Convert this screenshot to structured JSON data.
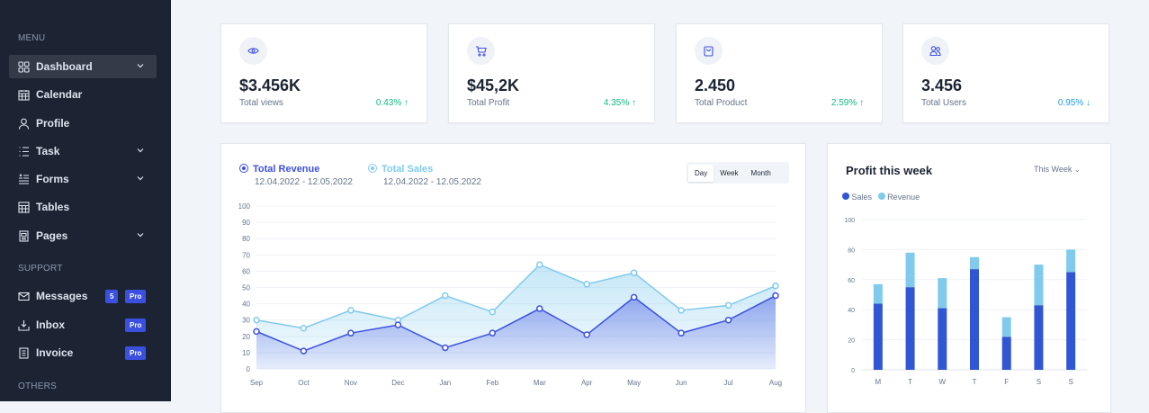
{
  "sidebar": {
    "sections": {
      "menu": "MENU",
      "support": "SUPPORT",
      "others": "OTHERS"
    },
    "items": [
      {
        "label": "Dashboard",
        "icon": "grid-icon",
        "chevron": true,
        "active": true
      },
      {
        "label": "Calendar",
        "icon": "calendar-icon"
      },
      {
        "label": "Profile",
        "icon": "user-icon"
      },
      {
        "label": "Task",
        "icon": "list-icon",
        "chevron": true
      },
      {
        "label": "Forms",
        "icon": "form-icon",
        "chevron": true
      },
      {
        "label": "Tables",
        "icon": "table-icon"
      },
      {
        "label": "Pages",
        "icon": "page-icon",
        "chevron": true
      }
    ],
    "support_items": [
      {
        "label": "Messages",
        "icon": "mail-icon",
        "count": "5",
        "pro": "Pro"
      },
      {
        "label": "Inbox",
        "icon": "inbox-icon",
        "pro": "Pro"
      },
      {
        "label": "Invoice",
        "icon": "invoice-icon",
        "pro": "Pro"
      }
    ]
  },
  "stats": [
    {
      "value": "$3.456K",
      "label": "Total views",
      "change": "0.43% ↑",
      "trend": "up",
      "icon": "eye-icon"
    },
    {
      "value": "$45,2K",
      "label": "Total Profit",
      "change": "4.35% ↑",
      "trend": "up",
      "icon": "cart-icon"
    },
    {
      "value": "2.450",
      "label": "Total Product",
      "change": "2.59% ↑",
      "trend": "up",
      "icon": "bag-icon"
    },
    {
      "value": "3.456",
      "label": "Total Users",
      "change": "0.95% ↓",
      "trend": "down",
      "icon": "users-icon"
    }
  ],
  "colors": {
    "up": "#10b981",
    "down": "#259ae6",
    "primary": "#3c50e0",
    "secondary": "#80caee",
    "bar_sales": "#3056d3"
  },
  "chart_data": [
    {
      "type": "area",
      "legend": [
        {
          "name": "Total Revenue",
          "date": "12.04.2022 - 12.05.2022"
        },
        {
          "name": "Total Sales",
          "date": "12.04.2022 - 12.05.2022"
        }
      ],
      "periods": [
        "Day",
        "Week",
        "Month"
      ],
      "selected_period": "Day",
      "categories": [
        "Sep",
        "Oct",
        "Nov",
        "Dec",
        "Jan",
        "Feb",
        "Mar",
        "Apr",
        "May",
        "Jun",
        "Jul",
        "Aug"
      ],
      "ylim": [
        0,
        100
      ],
      "yticks": [
        0,
        10,
        20,
        30,
        40,
        50,
        60,
        70,
        80,
        90,
        100
      ],
      "grid": true,
      "series": [
        {
          "name": "Total Revenue",
          "values": [
            23,
            11,
            22,
            27,
            13,
            22,
            37,
            21,
            44,
            22,
            30,
            45
          ]
        },
        {
          "name": "Total Sales",
          "values": [
            30,
            25,
            36,
            30,
            45,
            35,
            64,
            52,
            59,
            36,
            39,
            51
          ]
        }
      ]
    },
    {
      "type": "bar",
      "stacked": true,
      "title": "Profit this week",
      "filter": "This Week",
      "categories": [
        "M",
        "T",
        "W",
        "T",
        "F",
        "S",
        "S"
      ],
      "ylim": [
        0,
        100
      ],
      "yticks": [
        0,
        20,
        40,
        60,
        80,
        100
      ],
      "legend_placement": "top-left",
      "series": [
        {
          "name": "Sales",
          "values": [
            44,
            55,
            41,
            67,
            22,
            43,
            65
          ]
        },
        {
          "name": "Revenue",
          "values": [
            13,
            23,
            20,
            8,
            13,
            27,
            15
          ]
        }
      ]
    }
  ]
}
